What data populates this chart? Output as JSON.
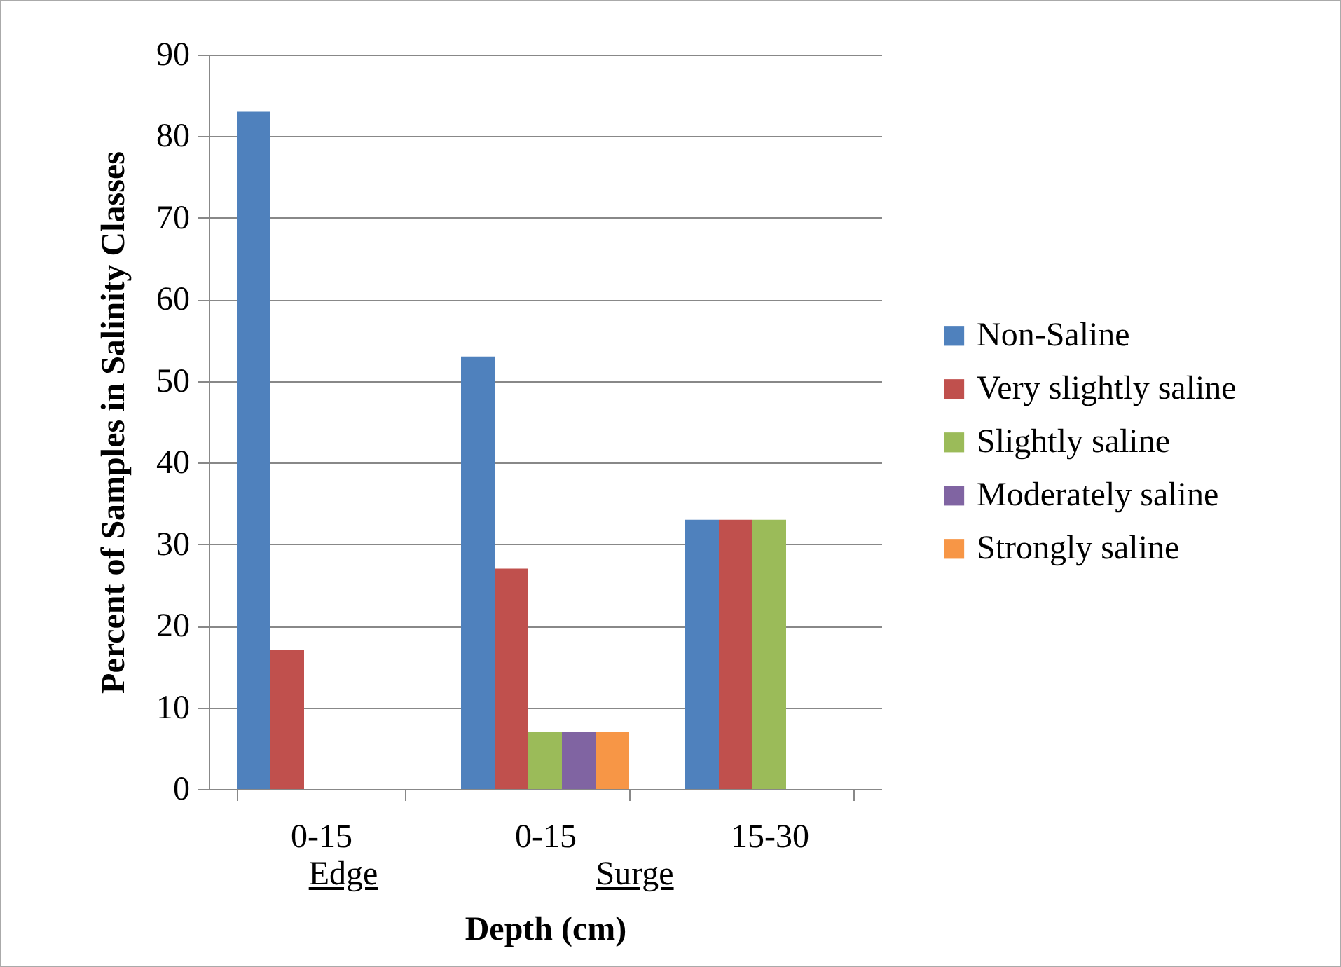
{
  "chart_data": {
    "type": "bar",
    "xlabel": "Depth (cm)",
    "ylabel": "Percent of Samples in Salinity Classes",
    "categories": [
      "0-15",
      "0-15",
      "15-30"
    ],
    "series": [
      {
        "name": "Non-Saline",
        "color": "#4f81bd",
        "values": [
          83,
          53,
          33
        ]
      },
      {
        "name": "Very slightly saline",
        "color": "#c0504d",
        "values": [
          17,
          27,
          33
        ]
      },
      {
        "name": "Slightly saline",
        "color": "#9bbb59",
        "values": [
          null,
          7,
          33
        ]
      },
      {
        "name": "Moderately saline",
        "color": "#8064a2",
        "values": [
          null,
          7,
          null
        ]
      },
      {
        "name": "Strongly saline",
        "color": "#f79646",
        "values": [
          null,
          7,
          null
        ]
      }
    ],
    "annotations": [
      "Edge",
      "Surge"
    ],
    "ylim": [
      0,
      90
    ],
    "yticks": [
      0,
      10,
      20,
      30,
      40,
      50,
      60,
      70,
      80,
      90
    ],
    "grid": "y",
    "legend": "right"
  }
}
